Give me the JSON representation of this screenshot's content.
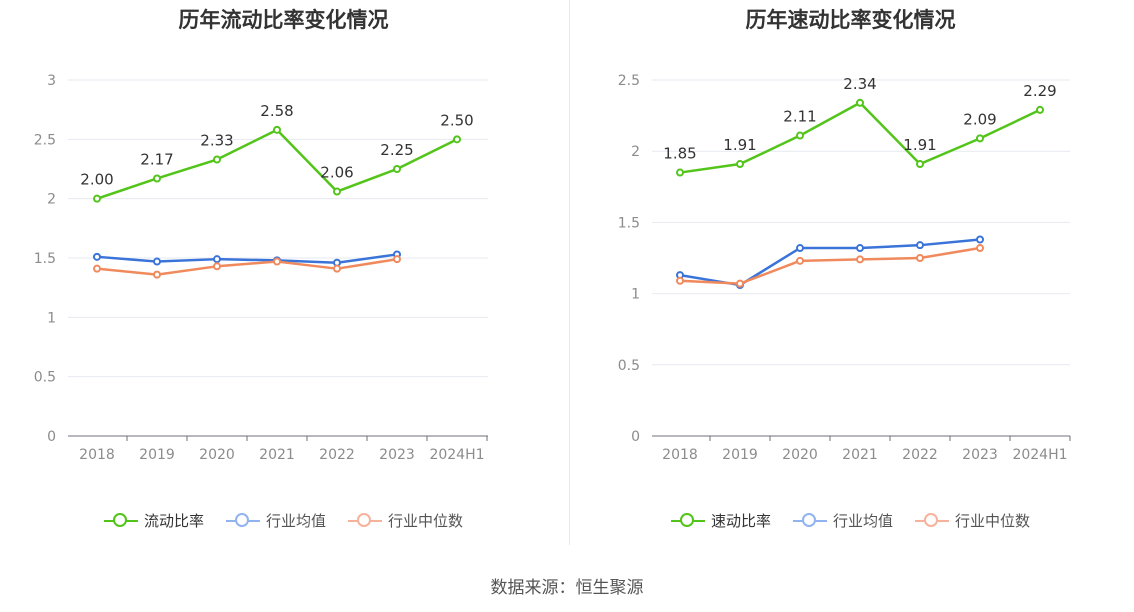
{
  "charts": [
    {
      "title": "历年流动比率变化情况",
      "legend": [
        {
          "label": "流动比率",
          "color": "#52c41a"
        },
        {
          "label": "行业均值",
          "color": "#91b4f0"
        },
        {
          "label": "行业中位数",
          "color": "#f7b29b"
        }
      ]
    },
    {
      "title": "历年速动比率变化情况",
      "legend": [
        {
          "label": "速动比率",
          "color": "#52c41a"
        },
        {
          "label": "行业均值",
          "color": "#91b4f0"
        },
        {
          "label": "行业中位数",
          "color": "#f7b29b"
        }
      ]
    }
  ],
  "source": "数据来源：恒生聚源",
  "chart_data": [
    {
      "type": "line",
      "title": "历年流动比率变化情况",
      "categories": [
        "2018",
        "2019",
        "2020",
        "2021",
        "2022",
        "2023",
        "2024H1"
      ],
      "ylim": [
        0,
        3
      ],
      "yticks": [
        "0",
        "0.5",
        "1",
        "1.5",
        "2",
        "2.5",
        "3"
      ],
      "grid": true,
      "legend_position": "bottom",
      "series": [
        {
          "name": "流动比率",
          "color": "#52c41a",
          "values": [
            2.0,
            2.17,
            2.33,
            2.58,
            2.06,
            2.25,
            2.5
          ],
          "labels": [
            "2.00",
            "2.17",
            "2.33",
            "2.58",
            "2.06",
            "2.25",
            "2.50"
          ]
        },
        {
          "name": "行业均值",
          "color": "#3a74d8",
          "values": [
            1.51,
            1.47,
            1.49,
            1.48,
            1.46,
            1.53,
            null
          ]
        },
        {
          "name": "行业中位数",
          "color": "#f08a5d",
          "values": [
            1.41,
            1.36,
            1.43,
            1.47,
            1.41,
            1.49,
            null
          ]
        }
      ]
    },
    {
      "type": "line",
      "title": "历年速动比率变化情况",
      "categories": [
        "2018",
        "2019",
        "2020",
        "2021",
        "2022",
        "2023",
        "2024H1"
      ],
      "ylim": [
        0,
        2.5
      ],
      "yticks": [
        "0",
        "0.5",
        "1",
        "1.5",
        "2",
        "2.5"
      ],
      "grid": true,
      "legend_position": "bottom",
      "series": [
        {
          "name": "速动比率",
          "color": "#52c41a",
          "values": [
            1.85,
            1.91,
            2.11,
            2.34,
            1.91,
            2.09,
            2.29
          ],
          "labels": [
            "1.85",
            "1.91",
            "2.11",
            "2.34",
            "1.91",
            "2.09",
            "2.29"
          ]
        },
        {
          "name": "行业均值",
          "color": "#3a74d8",
          "values": [
            1.13,
            1.06,
            1.32,
            1.32,
            1.34,
            1.38,
            null
          ]
        },
        {
          "name": "行业中位数",
          "color": "#f08a5d",
          "values": [
            1.09,
            1.07,
            1.23,
            1.24,
            1.25,
            1.32,
            null
          ]
        }
      ]
    }
  ]
}
